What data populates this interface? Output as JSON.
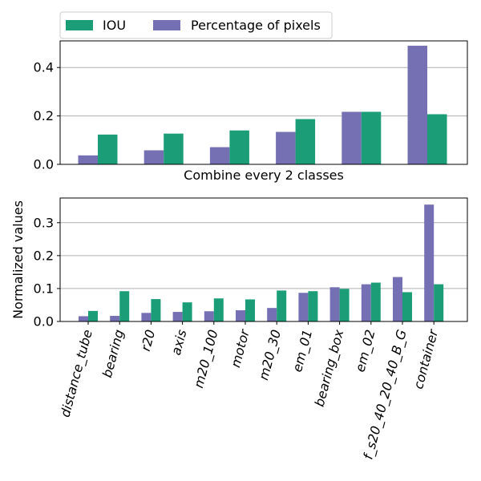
{
  "legend": {
    "placement": "top-left, above charts",
    "items": [
      {
        "label": "IOU",
        "color": "#1b9e77"
      },
      {
        "label": "Percentage of pixels",
        "color": "#7570b3"
      }
    ]
  },
  "chart_data": [
    {
      "type": "bar",
      "xlabel": "Combine every 2 classes",
      "ylabel": "",
      "ylim": [
        0,
        0.51
      ],
      "yticks": [
        "0.0",
        "0.2",
        "0.4"
      ],
      "grid": "horizontal",
      "categories": [
        "",
        "",
        "",
        "",
        "",
        ""
      ],
      "series": [
        {
          "name": "Percentage of pixels",
          "color": "#7570b3",
          "values": [
            0.037,
            0.058,
            0.071,
            0.134,
            0.217,
            0.49
          ]
        },
        {
          "name": "IOU",
          "color": "#1b9e77",
          "values": [
            0.123,
            0.127,
            0.14,
            0.187,
            0.217,
            0.207
          ]
        }
      ]
    },
    {
      "type": "bar",
      "xlabel": "",
      "ylabel": "Normalized values",
      "ylim": [
        0,
        0.375
      ],
      "yticks": [
        "0.0",
        "0.1",
        "0.2",
        "0.3"
      ],
      "grid": "horizontal",
      "categories": [
        "distance_tube",
        "bearing",
        "r20",
        "axis",
        "m20_100",
        "motor",
        "m20_30",
        "em_01",
        "bearing_box",
        "em_02",
        "f_s20_40_20_40_B_G",
        "container"
      ],
      "series": [
        {
          "name": "Percentage of pixels",
          "color": "#7570b3",
          "values": [
            0.016,
            0.017,
            0.026,
            0.029,
            0.031,
            0.034,
            0.041,
            0.087,
            0.104,
            0.113,
            0.135,
            0.355
          ]
        },
        {
          "name": "IOU",
          "color": "#1b9e77",
          "values": [
            0.032,
            0.092,
            0.068,
            0.058,
            0.07,
            0.067,
            0.094,
            0.092,
            0.099,
            0.118,
            0.089,
            0.113
          ]
        }
      ]
    }
  ]
}
